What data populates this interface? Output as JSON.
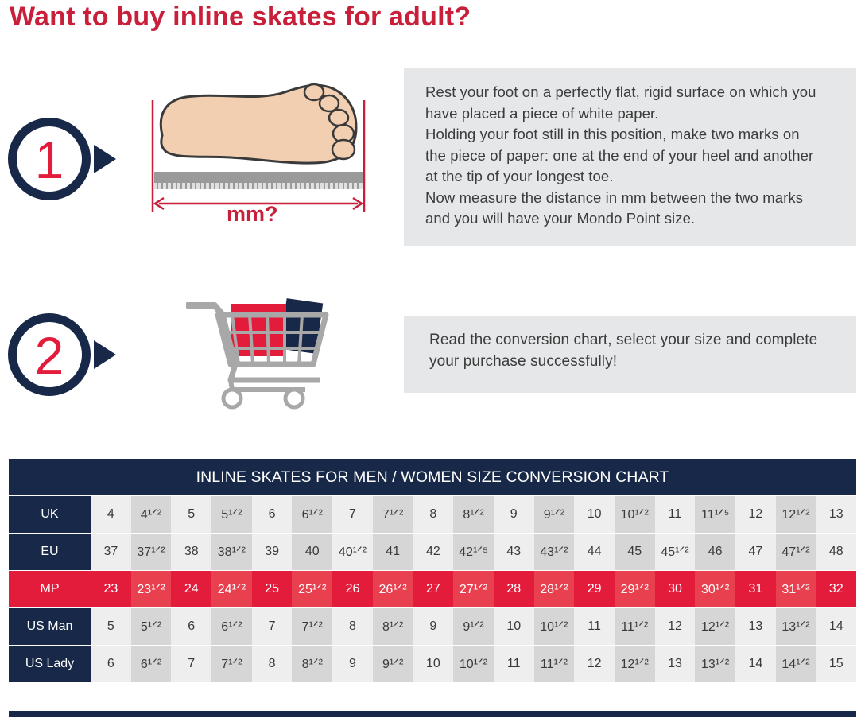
{
  "title": "Want to buy inline skates for adult?",
  "colors": {
    "accent_red": "#c8203a",
    "navy": "#172848",
    "mp_red": "#e41c3c",
    "box_gray": "#e6e7e9"
  },
  "steps": [
    {
      "number": "1",
      "illustration": "foot-measure-icon",
      "illustration_label": "mm?",
      "lines": [
        "Rest your foot on a perfectly flat, rigid surface on which you",
        "have placed a piece of white paper.",
        "Holding your foot still in this position, make two marks on",
        "the piece of paper: one at the end of your heel and another",
        "at the tip of your longest toe.",
        "Now measure the distance in mm between the two marks",
        "and you will have your Mondo Point size."
      ]
    },
    {
      "number": "2",
      "illustration": "shopping-cart-icon",
      "lines": [
        "Read the conversion chart, select your size and complete",
        "your purchase successfully!"
      ]
    }
  ],
  "chart_data": {
    "type": "table",
    "title": "INLINE SKATES FOR MEN / WOMEN SIZE CONVERSION CHART",
    "rows": [
      {
        "label": "UK",
        "values": [
          "4",
          "4¹ᐟ²",
          "5",
          "5¹ᐟ²",
          "6",
          "6¹ᐟ²",
          "7",
          "7¹ᐟ²",
          "8",
          "8¹ᐟ²",
          "9",
          "9¹ᐟ²",
          "10",
          "10¹ᐟ²",
          "11",
          "11¹ᐟ⁵",
          "12",
          "12¹ᐟ²",
          "13"
        ]
      },
      {
        "label": "EU",
        "values": [
          "37",
          "37¹ᐟ²",
          "38",
          "38¹ᐟ²",
          "39",
          "40",
          "40¹ᐟ²",
          "41",
          "42",
          "42¹ᐟ⁵",
          "43",
          "43¹ᐟ²",
          "44",
          "45",
          "45¹ᐟ²",
          "46",
          "47",
          "47¹ᐟ²",
          "48"
        ]
      },
      {
        "label": "MP",
        "values": [
          "23",
          "23¹ᐟ²",
          "24",
          "24¹ᐟ²",
          "25",
          "25¹ᐟ²",
          "26",
          "26¹ᐟ²",
          "27",
          "27¹ᐟ²",
          "28",
          "28¹ᐟ²",
          "29",
          "29¹ᐟ²",
          "30",
          "30¹ᐟ²",
          "31",
          "31¹ᐟ²",
          "32"
        ]
      },
      {
        "label": "US Man",
        "values": [
          "5",
          "5¹ᐟ²",
          "6",
          "6¹ᐟ²",
          "7",
          "7¹ᐟ²",
          "8",
          "8¹ᐟ²",
          "9",
          "9¹ᐟ²",
          "10",
          "10¹ᐟ²",
          "11",
          "11¹ᐟ²",
          "12",
          "12¹ᐟ²",
          "13",
          "13¹ᐟ²",
          "14"
        ]
      },
      {
        "label": "US Lady",
        "values": [
          "6",
          "6¹ᐟ²",
          "7",
          "7¹ᐟ²",
          "8",
          "8¹ᐟ²",
          "9",
          "9¹ᐟ²",
          "10",
          "10¹ᐟ²",
          "11",
          "11¹ᐟ²",
          "12",
          "12¹ᐟ²",
          "13",
          "13¹ᐟ²",
          "14",
          "14¹ᐟ²",
          "15"
        ]
      }
    ]
  }
}
